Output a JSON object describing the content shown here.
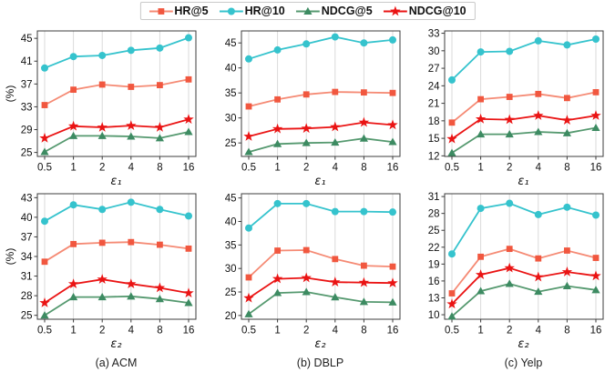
{
  "legend": {
    "position": "top",
    "items": [
      {
        "label": "HR@5",
        "color": "#f1573f",
        "line_color": "#f58a74",
        "marker": "square"
      },
      {
        "label": "HR@10",
        "color": "#35c3cd",
        "line_color": "#35c3cd",
        "marker": "circle"
      },
      {
        "label": "NDCG@5",
        "color": "#3d8b62",
        "line_color": "#55996f",
        "marker": "triangle"
      },
      {
        "label": "NDCG@10",
        "color": "#ea1414",
        "line_color": "#ea1414",
        "marker": "star"
      }
    ]
  },
  "chart_data": [
    {
      "type": "line",
      "dataset": "ACM",
      "xlabel": "ε₁",
      "ylabel": "(%)",
      "grid": "vertical",
      "x_categories": [
        "0.5",
        "1",
        "2",
        "4",
        "8",
        "16"
      ],
      "yticks": [
        25,
        29,
        33,
        37,
        41,
        45
      ],
      "ylim": [
        24.3,
        46.3
      ],
      "series": [
        {
          "name": "HR@5",
          "values": [
            33.3,
            36.0,
            36.9,
            36.5,
            36.8,
            37.8
          ]
        },
        {
          "name": "HR@10",
          "values": [
            39.8,
            41.8,
            42.0,
            42.9,
            43.3,
            45.1
          ]
        },
        {
          "name": "NDCG@5",
          "values": [
            25.1,
            27.9,
            27.9,
            27.8,
            27.5,
            28.6
          ]
        },
        {
          "name": "NDCG@10",
          "values": [
            27.5,
            29.6,
            29.4,
            29.7,
            29.4,
            30.8
          ]
        }
      ]
    },
    {
      "type": "line",
      "dataset": "DBLP",
      "xlabel": "ε₁",
      "ylabel": "",
      "grid": "vertical",
      "x_categories": [
        "0.5",
        "1",
        "2",
        "4",
        "8",
        "16"
      ],
      "yticks": [
        25,
        30,
        35,
        40,
        45
      ],
      "ylim": [
        22.3,
        47.4
      ],
      "series": [
        {
          "name": "HR@5",
          "values": [
            32.3,
            33.7,
            34.7,
            35.2,
            35.1,
            35.0
          ]
        },
        {
          "name": "HR@10",
          "values": [
            41.8,
            43.6,
            44.8,
            46.2,
            45.0,
            45.6
          ]
        },
        {
          "name": "NDCG@5",
          "values": [
            23.2,
            24.8,
            25.0,
            25.1,
            25.9,
            25.2
          ]
        },
        {
          "name": "NDCG@10",
          "values": [
            26.3,
            27.8,
            27.9,
            28.2,
            29.1,
            28.6
          ]
        }
      ]
    },
    {
      "type": "line",
      "dataset": "Yelp",
      "xlabel": "ε₁",
      "ylabel": "",
      "grid": "vertical",
      "x_categories": [
        "0.5",
        "1",
        "2",
        "4",
        "8",
        "16"
      ],
      "yticks": [
        12,
        15,
        18,
        21,
        24,
        27,
        30,
        33
      ],
      "ylim": [
        11.9,
        33.4
      ],
      "series": [
        {
          "name": "HR@5",
          "values": [
            17.7,
            21.7,
            22.1,
            22.6,
            21.9,
            22.9
          ]
        },
        {
          "name": "HR@10",
          "values": [
            25.0,
            29.8,
            29.9,
            31.7,
            31.0,
            32.0
          ]
        },
        {
          "name": "NDCG@5",
          "values": [
            12.5,
            15.7,
            15.7,
            16.1,
            15.9,
            16.8
          ]
        },
        {
          "name": "NDCG@10",
          "values": [
            14.9,
            18.3,
            18.2,
            18.9,
            18.1,
            18.9
          ]
        }
      ]
    },
    {
      "type": "line",
      "dataset": "ACM",
      "xlabel": "ε₂",
      "ylabel": "(%)",
      "caption": "(a) ACM",
      "grid": "vertical",
      "x_categories": [
        "0.5",
        "1",
        "2",
        "4",
        "8",
        "16"
      ],
      "yticks": [
        25,
        28,
        31,
        34,
        37,
        40,
        43
      ],
      "ylim": [
        24.4,
        43.6
      ],
      "series": [
        {
          "name": "HR@5",
          "values": [
            33.2,
            35.9,
            36.1,
            36.2,
            35.8,
            35.2
          ]
        },
        {
          "name": "HR@10",
          "values": [
            39.4,
            41.9,
            41.2,
            42.3,
            41.2,
            40.2
          ]
        },
        {
          "name": "NDCG@5",
          "values": [
            25.0,
            27.8,
            27.8,
            27.9,
            27.5,
            26.9
          ]
        },
        {
          "name": "NDCG@10",
          "values": [
            26.9,
            29.8,
            30.5,
            29.8,
            29.2,
            28.4
          ]
        }
      ]
    },
    {
      "type": "line",
      "dataset": "DBLP",
      "xlabel": "ε₂",
      "ylabel": "",
      "caption": "(b) DBLP",
      "grid": "vertical",
      "x_categories": [
        "0.5",
        "1",
        "2",
        "4",
        "8",
        "16"
      ],
      "yticks": [
        20,
        25,
        30,
        35,
        40,
        45
      ],
      "ylim": [
        19.2,
        45.9
      ],
      "series": [
        {
          "name": "HR@5",
          "values": [
            28.1,
            33.8,
            33.9,
            32.0,
            30.6,
            30.4
          ]
        },
        {
          "name": "HR@10",
          "values": [
            38.6,
            43.8,
            43.8,
            42.1,
            42.1,
            42.0
          ]
        },
        {
          "name": "NDCG@5",
          "values": [
            20.3,
            24.8,
            25.0,
            23.9,
            22.9,
            22.8
          ]
        },
        {
          "name": "NDCG@10",
          "values": [
            23.7,
            27.8,
            28.0,
            27.1,
            27.0,
            26.9
          ]
        }
      ]
    },
    {
      "type": "line",
      "dataset": "Yelp",
      "xlabel": "ε₂",
      "ylabel": "",
      "caption": "(c) Yelp",
      "grid": "vertical",
      "x_categories": [
        "0.5",
        "1",
        "2",
        "4",
        "8",
        "16"
      ],
      "yticks": [
        10,
        13,
        16,
        19,
        22,
        25,
        28,
        31
      ],
      "ylim": [
        9.2,
        31.5
      ],
      "series": [
        {
          "name": "HR@5",
          "values": [
            13.8,
            20.3,
            21.7,
            20.0,
            21.4,
            20.1
          ]
        },
        {
          "name": "HR@10",
          "values": [
            20.8,
            28.9,
            29.8,
            27.8,
            29.1,
            27.7
          ]
        },
        {
          "name": "NDCG@5",
          "values": [
            9.7,
            14.2,
            15.5,
            14.1,
            15.1,
            14.4
          ]
        },
        {
          "name": "NDCG@10",
          "values": [
            11.9,
            17.1,
            18.3,
            16.7,
            17.6,
            16.9
          ]
        }
      ]
    }
  ]
}
